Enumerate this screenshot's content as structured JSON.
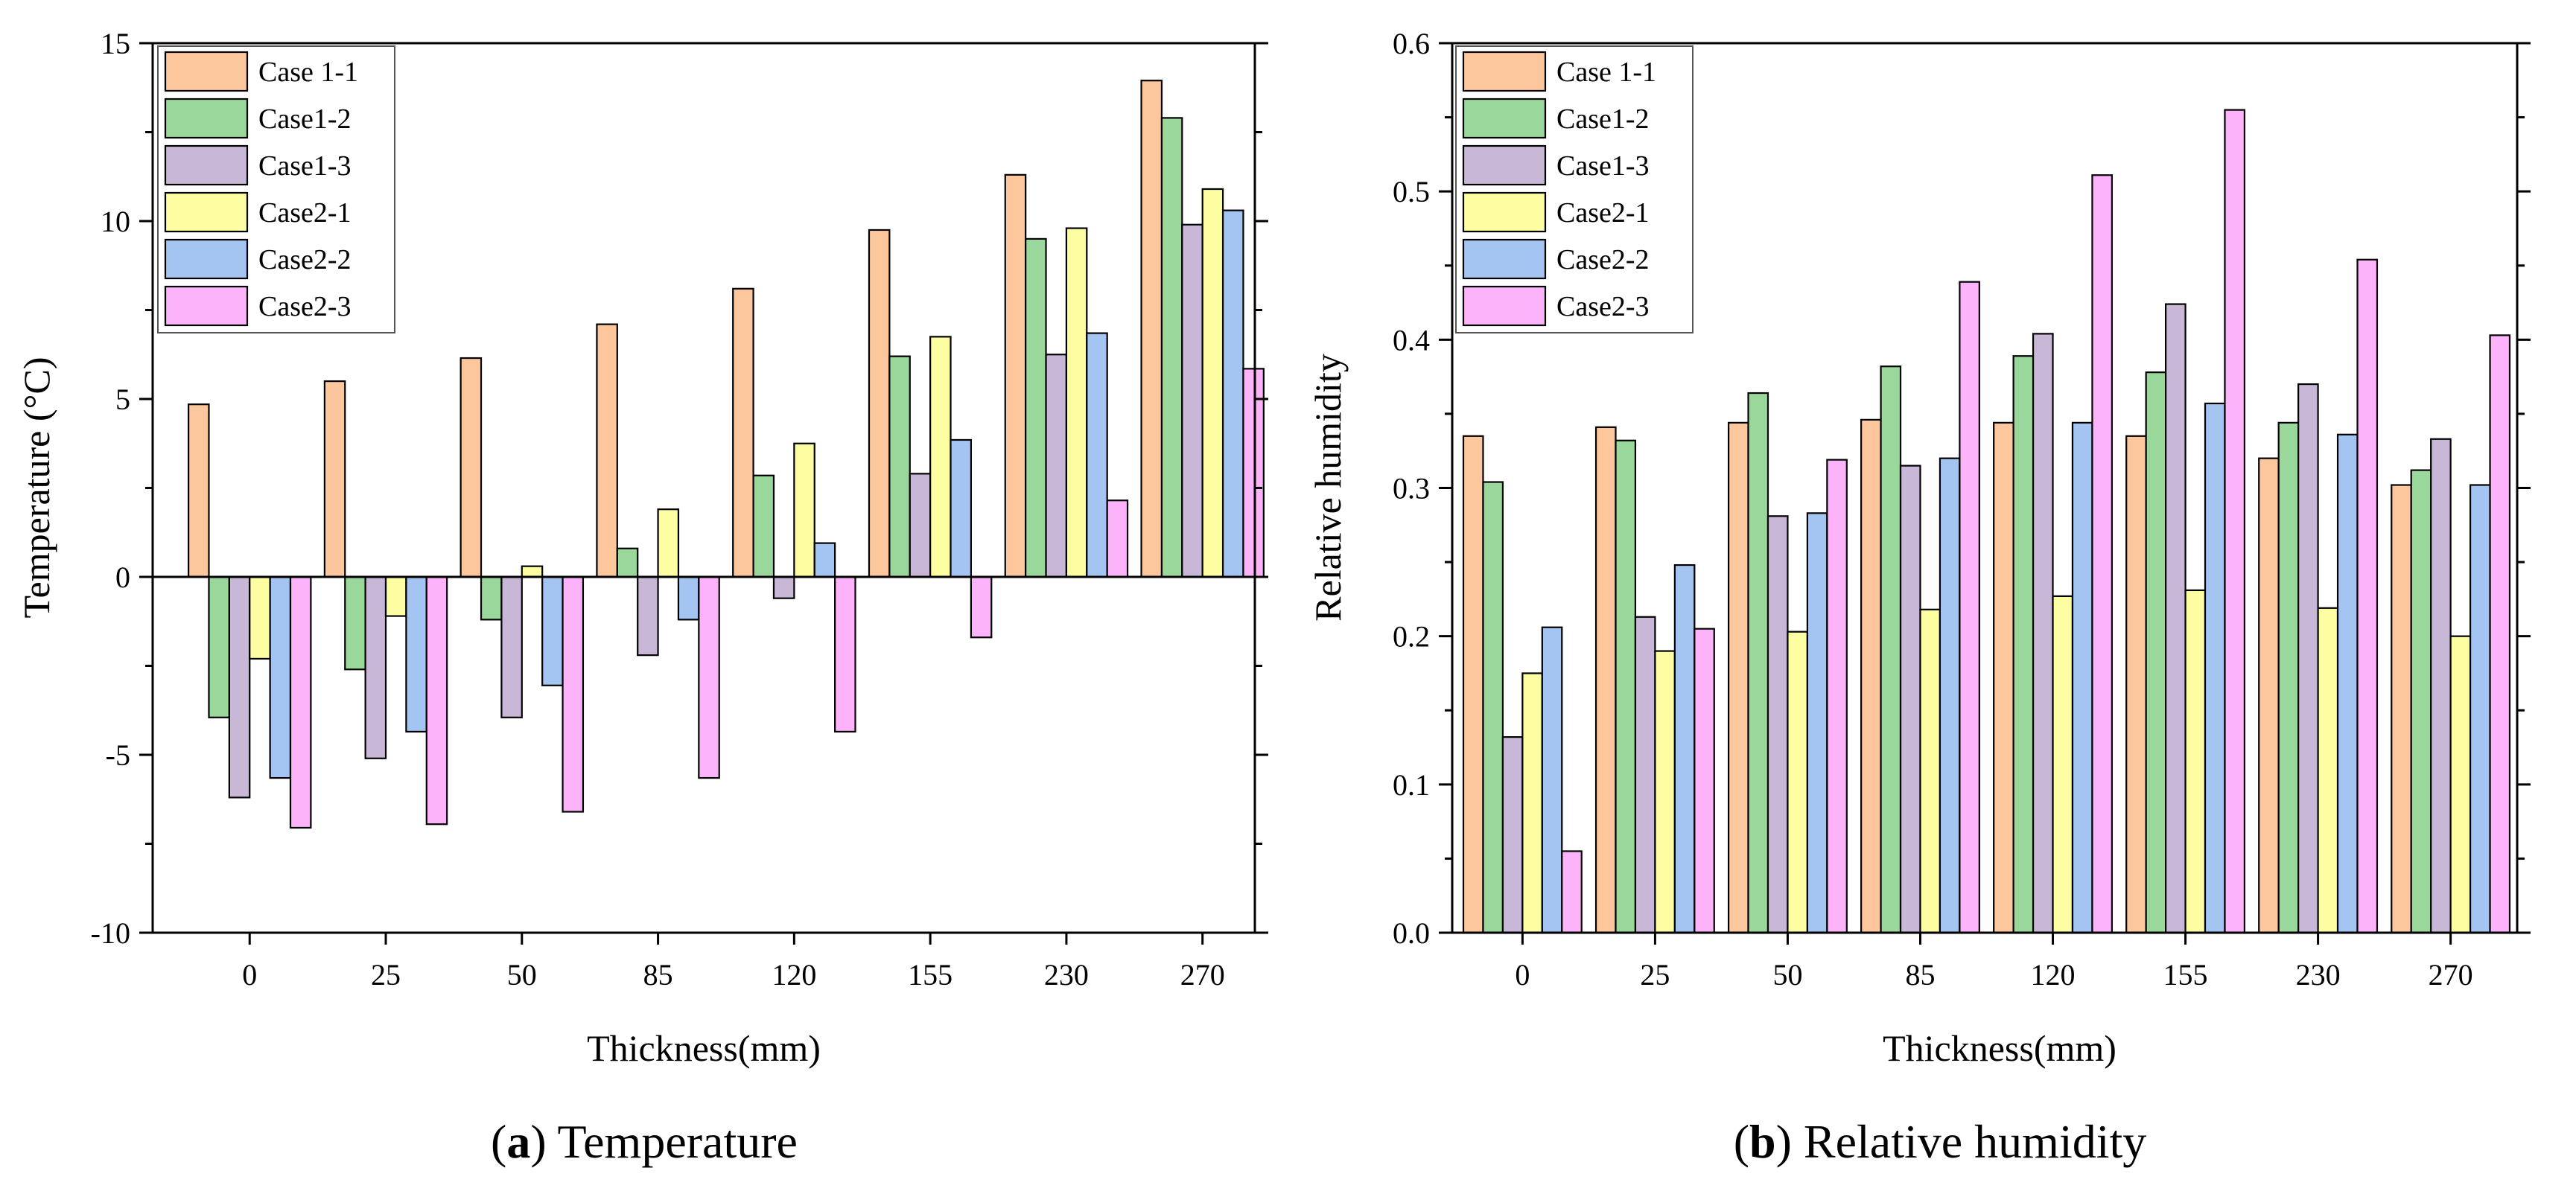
{
  "series_colors": [
    "#fcc79d",
    "#99d79a",
    "#c8b7d6",
    "#fdfda2",
    "#a4c5f1",
    "#fdb3f9"
  ],
  "chart_data": [
    {
      "type": "bar",
      "title": "",
      "caption_label": "a",
      "caption_text": "Temperature",
      "xlabel": "Thickness(mm)",
      "ylabel": "Temperature (°C)",
      "ylim": [
        -10,
        15
      ],
      "yticks": [
        -10,
        -5,
        0,
        5,
        10,
        15
      ],
      "legend_position": "top-left",
      "categories": [
        "0",
        "25",
        "50",
        "85",
        "120",
        "155",
        "230",
        "270"
      ],
      "series": [
        {
          "name": "Case 1-1",
          "values": [
            4.85,
            5.5,
            6.15,
            7.1,
            8.1,
            9.75,
            11.3,
            13.95
          ]
        },
        {
          "name": "Case1-2",
          "values": [
            -3.95,
            -2.6,
            -1.2,
            0.8,
            2.85,
            6.2,
            9.5,
            12.9
          ]
        },
        {
          "name": "Case1-3",
          "values": [
            -6.2,
            -5.1,
            -3.95,
            -2.2,
            -0.6,
            2.9,
            6.25,
            9.9
          ]
        },
        {
          "name": "Case2-1",
          "values": [
            -2.3,
            -1.1,
            0.3,
            1.9,
            3.75,
            6.75,
            9.8,
            10.9
          ]
        },
        {
          "name": "Case2-2",
          "values": [
            -5.65,
            -4.35,
            -3.05,
            -1.2,
            0.95,
            3.85,
            6.85,
            10.3
          ]
        },
        {
          "name": "Case2-3",
          "values": [
            -7.05,
            -6.95,
            -6.6,
            -5.65,
            -4.35,
            -1.7,
            2.15,
            5.85
          ]
        }
      ]
    },
    {
      "type": "bar",
      "title": "",
      "caption_label": "b",
      "caption_text": "Relative humidity",
      "xlabel": "Thickness(mm)",
      "ylabel": "Relative humidity",
      "ylim": [
        0.0,
        0.6
      ],
      "yticks": [
        0.0,
        0.1,
        0.2,
        0.3,
        0.4,
        0.5,
        0.6
      ],
      "legend_position": "top-left",
      "categories": [
        "0",
        "25",
        "50",
        "85",
        "120",
        "155",
        "230",
        "270"
      ],
      "series": [
        {
          "name": "Case 1-1",
          "values": [
            0.335,
            0.341,
            0.344,
            0.346,
            0.344,
            0.335,
            0.32,
            0.302
          ]
        },
        {
          "name": "Case1-2",
          "values": [
            0.304,
            0.332,
            0.364,
            0.382,
            0.389,
            0.378,
            0.344,
            0.312
          ]
        },
        {
          "name": "Case1-3",
          "values": [
            0.132,
            0.213,
            0.281,
            0.315,
            0.404,
            0.424,
            0.37,
            0.333
          ]
        },
        {
          "name": "Case2-1",
          "values": [
            0.175,
            0.19,
            0.203,
            0.218,
            0.227,
            0.231,
            0.219,
            0.2
          ]
        },
        {
          "name": "Case2-2",
          "values": [
            0.206,
            0.248,
            0.283,
            0.32,
            0.344,
            0.357,
            0.336,
            0.302
          ]
        },
        {
          "name": "Case2-3",
          "values": [
            0.055,
            0.205,
            0.319,
            0.439,
            0.511,
            0.555,
            0.454,
            0.403
          ]
        }
      ]
    }
  ]
}
